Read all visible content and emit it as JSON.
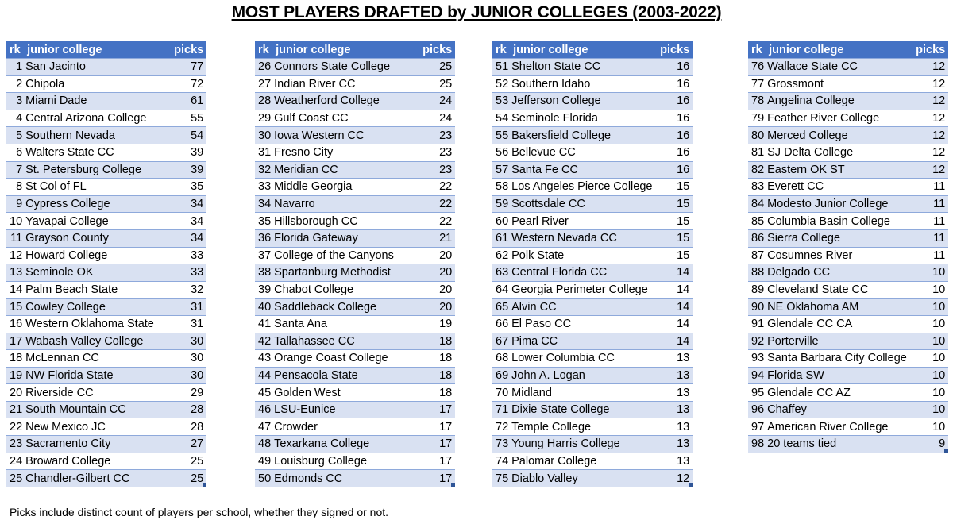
{
  "title": "MOST PLAYERS DRAFTED by JUNIOR COLLEGES (2003-2022)",
  "headers": {
    "rk": "rk",
    "college": "junior college",
    "picks": "picks"
  },
  "footnote": "Picks include distinct count of players per school, whether they signed or not.",
  "tables": [
    {
      "rows": [
        {
          "rk": "1",
          "college": "San Jacinto",
          "picks": "77"
        },
        {
          "rk": "2",
          "college": "Chipola",
          "picks": "72"
        },
        {
          "rk": "3",
          "college": "Miami Dade",
          "picks": "61"
        },
        {
          "rk": "4",
          "college": "Central Arizona College",
          "picks": "55"
        },
        {
          "rk": "5",
          "college": "Southern Nevada",
          "picks": "54"
        },
        {
          "rk": "6",
          "college": "Walters State CC",
          "picks": "39"
        },
        {
          "rk": "7",
          "college": "St. Petersburg College",
          "picks": "39"
        },
        {
          "rk": "8",
          "college": "St Col of FL",
          "picks": "35"
        },
        {
          "rk": "9",
          "college": "Cypress College",
          "picks": "34"
        },
        {
          "rk": "10",
          "college": "Yavapai College",
          "picks": "34"
        },
        {
          "rk": "11",
          "college": "Grayson County",
          "picks": "34"
        },
        {
          "rk": "12",
          "college": "Howard College",
          "picks": "33"
        },
        {
          "rk": "13",
          "college": "Seminole OK",
          "picks": "33"
        },
        {
          "rk": "14",
          "college": "Palm Beach State",
          "picks": "32"
        },
        {
          "rk": "15",
          "college": "Cowley College",
          "picks": "31"
        },
        {
          "rk": "16",
          "college": "Western Oklahoma State",
          "picks": "31"
        },
        {
          "rk": "17",
          "college": "Wabash Valley College",
          "picks": "30"
        },
        {
          "rk": "18",
          "college": "McLennan CC",
          "picks": "30"
        },
        {
          "rk": "19",
          "college": "NW Florida State",
          "picks": "30"
        },
        {
          "rk": "20",
          "college": "Riverside CC",
          "picks": "29"
        },
        {
          "rk": "21",
          "college": "South Mountain CC",
          "picks": "28"
        },
        {
          "rk": "22",
          "college": "New Mexico JC",
          "picks": "28"
        },
        {
          "rk": "23",
          "college": "Sacramento City",
          "picks": "27"
        },
        {
          "rk": "24",
          "college": "Broward College",
          "picks": "25"
        },
        {
          "rk": "25",
          "college": "Chandler-Gilbert CC",
          "picks": "25"
        }
      ]
    },
    {
      "rows": [
        {
          "rk": "26",
          "college": "Connors State College",
          "picks": "25"
        },
        {
          "rk": "27",
          "college": "Indian River CC",
          "picks": "25"
        },
        {
          "rk": "28",
          "college": "Weatherford College",
          "picks": "24"
        },
        {
          "rk": "29",
          "college": "Gulf Coast CC",
          "picks": "24"
        },
        {
          "rk": "30",
          "college": "Iowa Western CC",
          "picks": "23"
        },
        {
          "rk": "31",
          "college": "Fresno City",
          "picks": "23"
        },
        {
          "rk": "32",
          "college": "Meridian CC",
          "picks": "23"
        },
        {
          "rk": "33",
          "college": "Middle Georgia",
          "picks": "22"
        },
        {
          "rk": "34",
          "college": "Navarro",
          "picks": "22"
        },
        {
          "rk": "35",
          "college": "Hillsborough CC",
          "picks": "22"
        },
        {
          "rk": "36",
          "college": "Florida Gateway",
          "picks": "21"
        },
        {
          "rk": "37",
          "college": "College of the Canyons",
          "picks": "20"
        },
        {
          "rk": "38",
          "college": "Spartanburg Methodist",
          "picks": "20"
        },
        {
          "rk": "39",
          "college": "Chabot College",
          "picks": "20"
        },
        {
          "rk": "40",
          "college": "Saddleback College",
          "picks": "20"
        },
        {
          "rk": "41",
          "college": "Santa Ana",
          "picks": "19"
        },
        {
          "rk": "42",
          "college": "Tallahassee CC",
          "picks": "18"
        },
        {
          "rk": "43",
          "college": "Orange Coast College",
          "picks": "18"
        },
        {
          "rk": "44",
          "college": "Pensacola State",
          "picks": "18"
        },
        {
          "rk": "45",
          "college": "Golden West",
          "picks": "18"
        },
        {
          "rk": "46",
          "college": "LSU-Eunice",
          "picks": "17"
        },
        {
          "rk": "47",
          "college": "Crowder",
          "picks": "17"
        },
        {
          "rk": "48",
          "college": "Texarkana College",
          "picks": "17"
        },
        {
          "rk": "49",
          "college": "Louisburg College",
          "picks": "17"
        },
        {
          "rk": "50",
          "college": "Edmonds CC",
          "picks": "17"
        }
      ]
    },
    {
      "rows": [
        {
          "rk": "51",
          "college": "Shelton State CC",
          "picks": "16"
        },
        {
          "rk": "52",
          "college": "Southern Idaho",
          "picks": "16"
        },
        {
          "rk": "53",
          "college": "Jefferson College",
          "picks": "16"
        },
        {
          "rk": "54",
          "college": "Seminole Florida",
          "picks": "16"
        },
        {
          "rk": "55",
          "college": "Bakersfield College",
          "picks": "16"
        },
        {
          "rk": "56",
          "college": "Bellevue CC",
          "picks": "16"
        },
        {
          "rk": "57",
          "college": "Santa Fe CC",
          "picks": "16"
        },
        {
          "rk": "58",
          "college": "Los Angeles Pierce College",
          "picks": "15"
        },
        {
          "rk": "59",
          "college": "Scottsdale CC",
          "picks": "15"
        },
        {
          "rk": "60",
          "college": "Pearl River",
          "picks": "15"
        },
        {
          "rk": "61",
          "college": "Western Nevada CC",
          "picks": "15"
        },
        {
          "rk": "62",
          "college": "Polk State",
          "picks": "15"
        },
        {
          "rk": "63",
          "college": "Central Florida CC",
          "picks": "14"
        },
        {
          "rk": "64",
          "college": "Georgia Perimeter College",
          "picks": "14"
        },
        {
          "rk": "65",
          "college": "Alvin CC",
          "picks": "14"
        },
        {
          "rk": "66",
          "college": "El Paso CC",
          "picks": "14"
        },
        {
          "rk": "67",
          "college": "Pima CC",
          "picks": "14"
        },
        {
          "rk": "68",
          "college": "Lower Columbia CC",
          "picks": "13"
        },
        {
          "rk": "69",
          "college": "John A. Logan",
          "picks": "13"
        },
        {
          "rk": "70",
          "college": "Midland",
          "picks": "13"
        },
        {
          "rk": "71",
          "college": "Dixie State College",
          "picks": "13"
        },
        {
          "rk": "72",
          "college": "Temple College",
          "picks": "13"
        },
        {
          "rk": "73",
          "college": "Young Harris College",
          "picks": "13"
        },
        {
          "rk": "74",
          "college": "Palomar College",
          "picks": "13"
        },
        {
          "rk": "75",
          "college": "Diablo Valley",
          "picks": "12"
        }
      ]
    },
    {
      "rows": [
        {
          "rk": "76",
          "college": "Wallace State CC",
          "picks": "12"
        },
        {
          "rk": "77",
          "college": "Grossmont",
          "picks": "12"
        },
        {
          "rk": "78",
          "college": "Angelina College",
          "picks": "12"
        },
        {
          "rk": "79",
          "college": "Feather River College",
          "picks": "12"
        },
        {
          "rk": "80",
          "college": "Merced College",
          "picks": "12"
        },
        {
          "rk": "81",
          "college": "SJ Delta College",
          "picks": "12"
        },
        {
          "rk": "82",
          "college": "Eastern OK ST",
          "picks": "12"
        },
        {
          "rk": "83",
          "college": "Everett CC",
          "picks": "11"
        },
        {
          "rk": "84",
          "college": "Modesto Junior College",
          "picks": "11"
        },
        {
          "rk": "85",
          "college": "Columbia Basin College",
          "picks": "11"
        },
        {
          "rk": "86",
          "college": "Sierra College",
          "picks": "11"
        },
        {
          "rk": "87",
          "college": "Cosumnes River",
          "picks": "11"
        },
        {
          "rk": "88",
          "college": "Delgado CC",
          "picks": "10"
        },
        {
          "rk": "89",
          "college": "Cleveland State CC",
          "picks": "10"
        },
        {
          "rk": "90",
          "college": "NE Oklahoma AM",
          "picks": "10"
        },
        {
          "rk": "91",
          "college": "Glendale CC CA",
          "picks": "10"
        },
        {
          "rk": "92",
          "college": "Porterville",
          "picks": "10"
        },
        {
          "rk": "93",
          "college": "Santa Barbara City College",
          "picks": "10"
        },
        {
          "rk": "94",
          "college": "Florida SW",
          "picks": "10"
        },
        {
          "rk": "95",
          "college": "Glendale CC AZ",
          "picks": "10"
        },
        {
          "rk": "96",
          "college": "Chaffey",
          "picks": "10"
        },
        {
          "rk": "97",
          "college": "American River College",
          "picks": "10"
        },
        {
          "rk": "98",
          "college": "20 teams tied",
          "picks": "9"
        }
      ]
    }
  ]
}
